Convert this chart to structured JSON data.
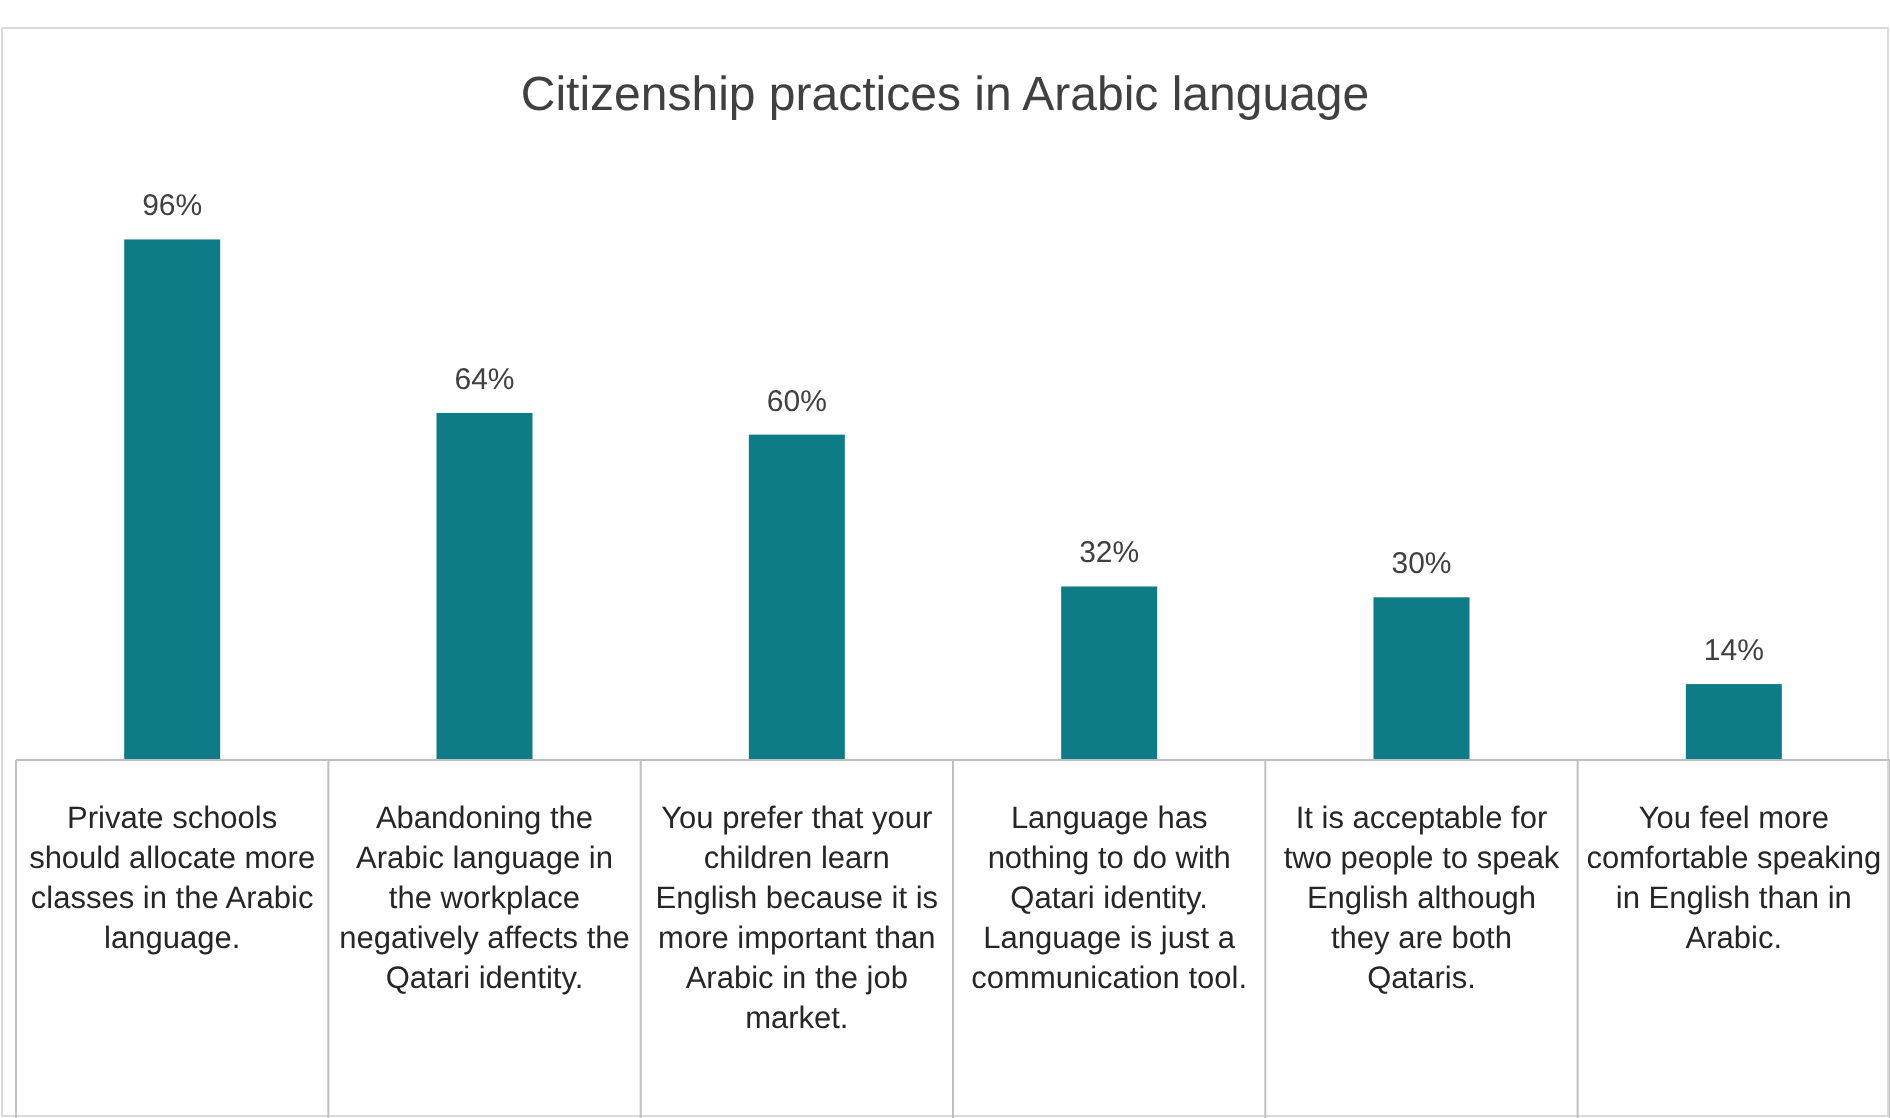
{
  "chart_data": {
    "type": "bar",
    "title": "Citizenship practices in Arabic language",
    "categories": [
      "Private schools should allocate more classes in the Arabic language.",
      "Abandoning the Arabic language in the workplace negatively affects the Qatari identity.",
      "You prefer that your children learn English because it is more important than Arabic in the job market.",
      "Language has nothing to do with Qatari identity. Language is just a communication tool.",
      "It is acceptable for two people to speak English although they are both Qataris.",
      "You feel more comfortable speaking in English than in Arabic."
    ],
    "values": [
      96,
      64,
      60,
      32,
      30,
      14
    ],
    "value_labels": [
      "96%",
      "64%",
      "60%",
      "32%",
      "30%",
      "14%"
    ],
    "color": "#0e7c86"
  }
}
